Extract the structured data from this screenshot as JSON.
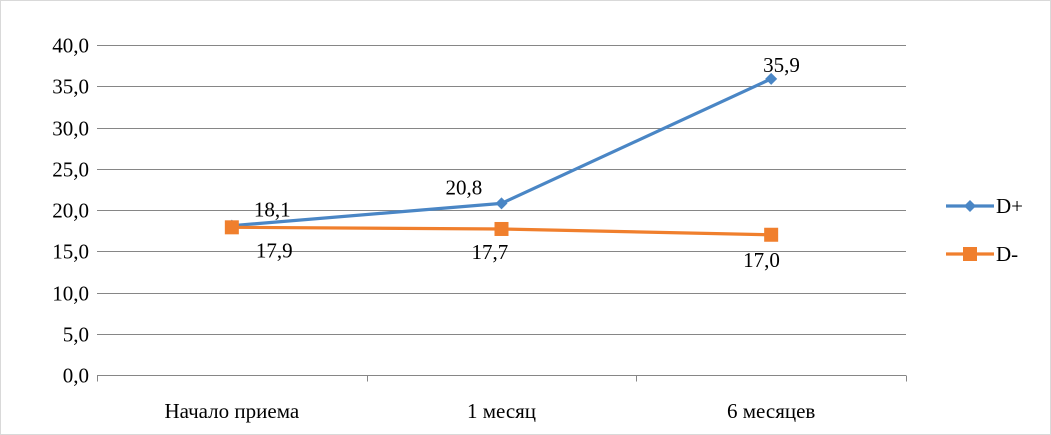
{
  "chart_data": {
    "type": "line",
    "title": "",
    "xlabel": "",
    "ylabel": "",
    "categories": [
      "Начало приема",
      "1 месяц",
      "6 месяцев"
    ],
    "series": [
      {
        "name": "D+",
        "values": [
          18.1,
          20.8,
          35.9
        ],
        "labels": [
          "18,1",
          "20,8",
          "35,9"
        ],
        "color": "#4a86c5",
        "marker": "diamond"
      },
      {
        "name": "D-",
        "values": [
          17.9,
          17.7,
          17.0
        ],
        "labels": [
          "17,9",
          "17,7",
          "17,0"
        ],
        "color": "#f07f2d",
        "marker": "square"
      }
    ],
    "ylim": [
      0,
      40
    ],
    "yticks": [
      0,
      5,
      10,
      15,
      20,
      25,
      30,
      35,
      40
    ],
    "ytick_labels": [
      "0,0",
      "5,0",
      "10,0",
      "15,0",
      "20,0",
      "25,0",
      "30,0",
      "35,0",
      "40,0"
    ],
    "grid": true,
    "legend": "right"
  }
}
